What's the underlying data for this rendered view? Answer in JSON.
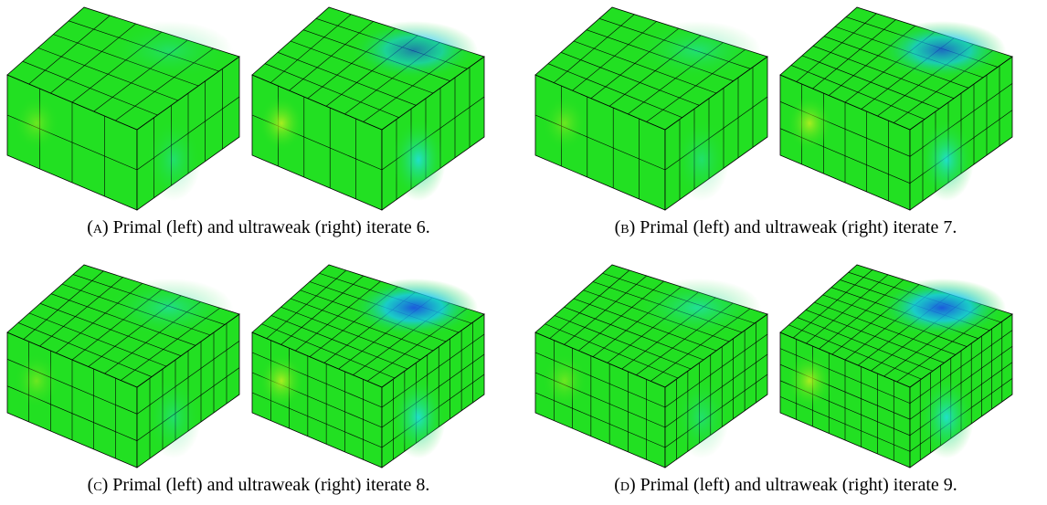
{
  "figure": {
    "panels": [
      {
        "label": "(a)",
        "caption": "Primal (left) and ultraweak (right) iterate 6."
      },
      {
        "label": "(b)",
        "caption": "Primal (left) and ultraweak (right) iterate 7."
      },
      {
        "label": "(c)",
        "caption": "Primal (left) and ultraweak (right) iterate 8."
      },
      {
        "label": "(d)",
        "caption": "Primal (left) and ultraweak (right) iterate 9."
      }
    ]
  }
}
